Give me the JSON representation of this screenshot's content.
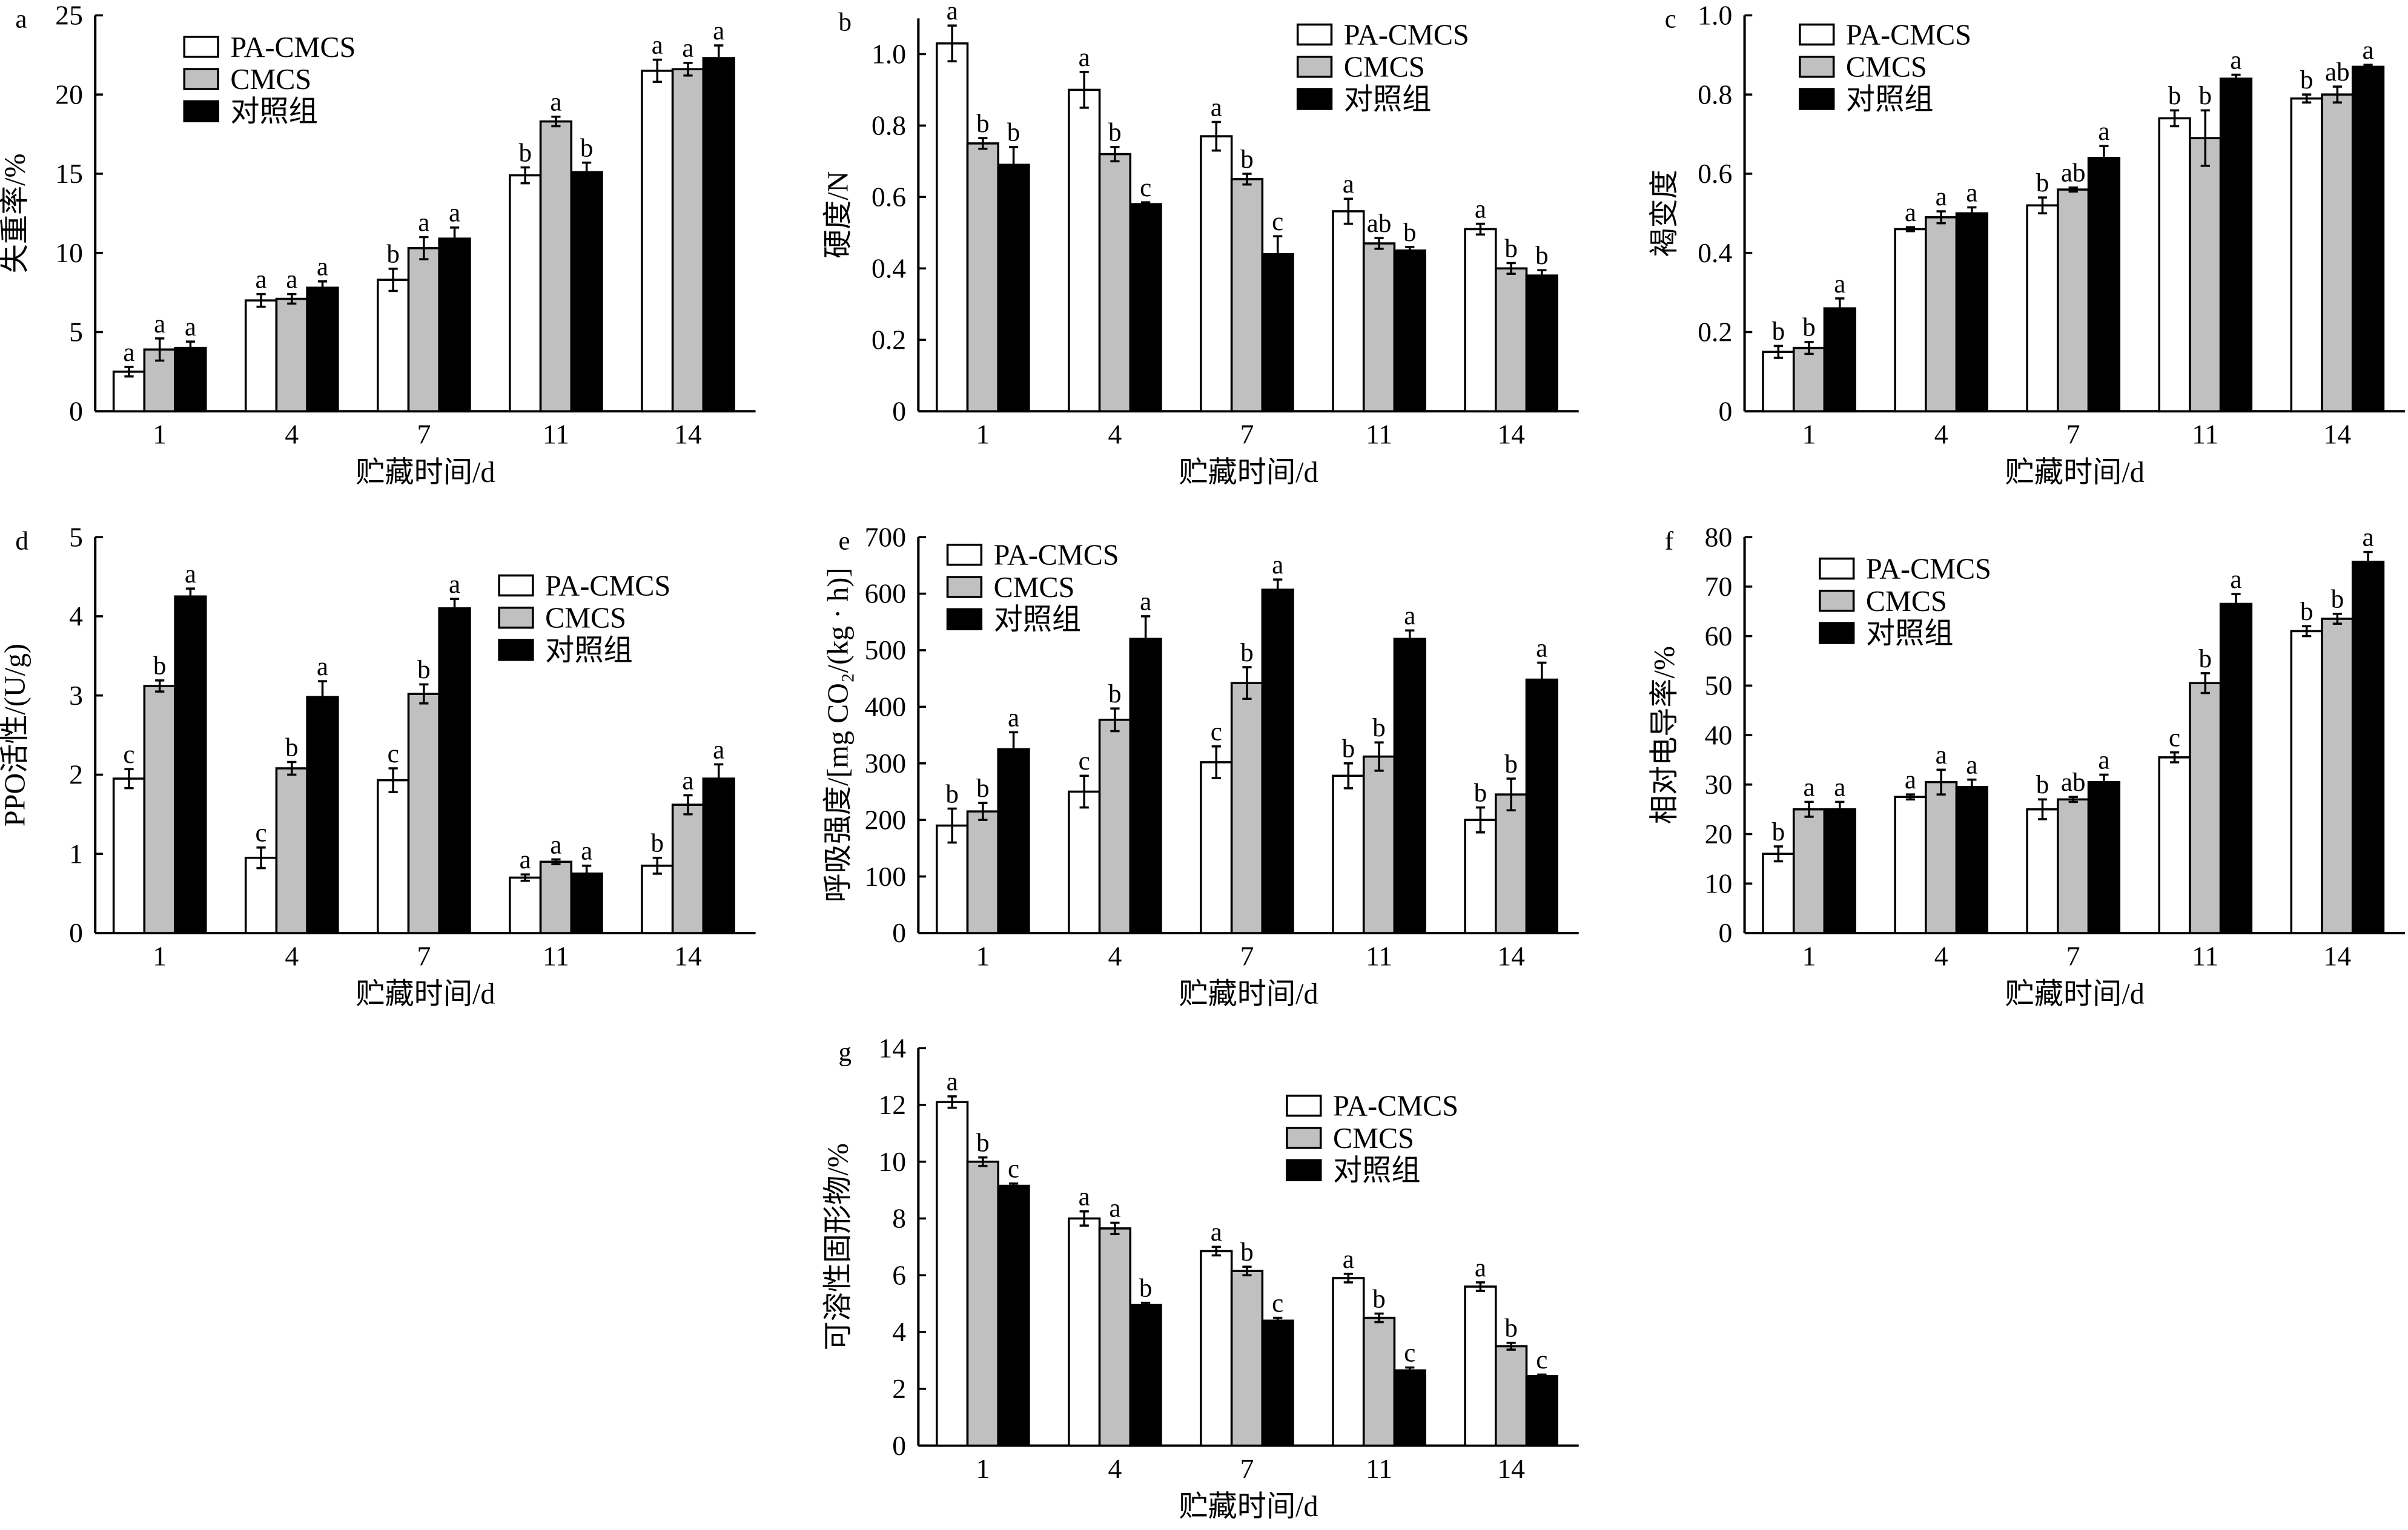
{
  "legend_labels": [
    "PA-CMCS",
    "CMCS",
    "对照组"
  ],
  "colors": {
    "PA-CMCS": "#ffffff",
    "CMCS": "#c0c0c0",
    "对照组": "#000000",
    "outline": "#000000"
  },
  "chart_data": [
    {
      "panel": "a",
      "type": "bar",
      "xlabel": "贮藏时间/d",
      "ylabel": "失重率/%",
      "ylim": [
        0,
        25
      ],
      "ytick_step": 5,
      "yticks": [
        "0",
        "5",
        "10",
        "15",
        "20",
        "25"
      ],
      "legend_position": "top-left",
      "grid": false,
      "categories": [
        "1",
        "4",
        "7",
        "11",
        "14"
      ],
      "series": [
        {
          "name": "PA-CMCS",
          "values": [
            2.5,
            7.0,
            8.3,
            14.9,
            21.5
          ],
          "errors": [
            0.3,
            0.4,
            0.7,
            0.5,
            0.7
          ],
          "letters": [
            "a",
            "a",
            "b",
            "b",
            "a"
          ]
        },
        {
          "name": "CMCS",
          "values": [
            3.9,
            7.1,
            10.3,
            18.3,
            21.6
          ],
          "errors": [
            0.7,
            0.3,
            0.7,
            0.3,
            0.4
          ],
          "letters": [
            "a",
            "a",
            "a",
            "a",
            "a"
          ]
        },
        {
          "name": "对照组",
          "values": [
            4.0,
            7.8,
            10.9,
            15.1,
            22.3
          ],
          "errors": [
            0.4,
            0.4,
            0.7,
            0.6,
            0.8
          ],
          "letters": [
            "a",
            "a",
            "a",
            "b",
            "a"
          ]
        }
      ]
    },
    {
      "panel": "b",
      "type": "bar",
      "xlabel": "贮藏时间/d",
      "ylabel": "硬度/N",
      "ylim": [
        0,
        1.1
      ],
      "ytick_step": 0.2,
      "yticks": [
        "0",
        "0.2",
        "0.4",
        "0.6",
        "0.8",
        "1.0"
      ],
      "legend_position": "top-right",
      "grid": false,
      "categories": [
        "1",
        "4",
        "7",
        "11",
        "14"
      ],
      "series": [
        {
          "name": "PA-CMCS",
          "values": [
            1.03,
            0.9,
            0.77,
            0.56,
            0.51
          ],
          "errors": [
            0.05,
            0.05,
            0.04,
            0.035,
            0.015
          ],
          "letters": [
            "a",
            "a",
            "a",
            "a",
            "a"
          ]
        },
        {
          "name": "CMCS",
          "values": [
            0.75,
            0.72,
            0.65,
            0.47,
            0.4
          ],
          "errors": [
            0.015,
            0.02,
            0.015,
            0.015,
            0.015
          ],
          "letters": [
            "b",
            "b",
            "b",
            "ab",
            "b"
          ]
        },
        {
          "name": "对照组",
          "values": [
            0.69,
            0.58,
            0.44,
            0.45,
            0.38
          ],
          "errors": [
            0.05,
            0.005,
            0.05,
            0.01,
            0.015
          ],
          "letters": [
            "b",
            "c",
            "c",
            "b",
            "b"
          ]
        }
      ]
    },
    {
      "panel": "c",
      "type": "bar",
      "xlabel": "贮藏时间/d",
      "ylabel": "褐变度",
      "ylim": [
        0,
        1.0
      ],
      "ytick_step": 0.2,
      "yticks": [
        "0",
        "0.2",
        "0.4",
        "0.6",
        "0.8",
        "1.0"
      ],
      "legend_position": "top-left",
      "grid": false,
      "categories": [
        "1",
        "4",
        "7",
        "11",
        "14"
      ],
      "series": [
        {
          "name": "PA-CMCS",
          "values": [
            0.15,
            0.46,
            0.52,
            0.74,
            0.79
          ],
          "errors": [
            0.015,
            0.005,
            0.02,
            0.02,
            0.01
          ],
          "letters": [
            "b",
            "a",
            "b",
            "b",
            "b"
          ]
        },
        {
          "name": "CMCS",
          "values": [
            0.16,
            0.49,
            0.56,
            0.69,
            0.8
          ],
          "errors": [
            0.015,
            0.015,
            0.005,
            0.07,
            0.02
          ],
          "letters": [
            "b",
            "a",
            "ab",
            "b",
            "ab"
          ]
        },
        {
          "name": "对照组",
          "values": [
            0.26,
            0.5,
            0.64,
            0.84,
            0.87
          ],
          "errors": [
            0.025,
            0.015,
            0.03,
            0.01,
            0.005
          ],
          "letters": [
            "a",
            "a",
            "a",
            "a",
            "a"
          ]
        }
      ]
    },
    {
      "panel": "d",
      "type": "bar",
      "xlabel": "贮藏时间/d",
      "ylabel": "PPO活性/(U/g)",
      "ylim": [
        0,
        5
      ],
      "ytick_step": 1,
      "yticks": [
        "0",
        "1",
        "2",
        "3",
        "4",
        "5"
      ],
      "legend_position": "top-right",
      "grid": false,
      "categories": [
        "1",
        "4",
        "7",
        "11",
        "14"
      ],
      "series": [
        {
          "name": "PA-CMCS",
          "values": [
            1.95,
            0.95,
            1.93,
            0.7,
            0.85
          ],
          "errors": [
            0.12,
            0.13,
            0.15,
            0.04,
            0.1
          ],
          "letters": [
            "c",
            "c",
            "c",
            "a",
            "b"
          ]
        },
        {
          "name": "CMCS",
          "values": [
            3.12,
            2.08,
            3.02,
            0.9,
            1.62
          ],
          "errors": [
            0.07,
            0.08,
            0.12,
            0.03,
            0.12
          ],
          "letters": [
            "b",
            "b",
            "b",
            "a",
            "a"
          ]
        },
        {
          "name": "对照组",
          "values": [
            4.25,
            2.98,
            4.1,
            0.75,
            1.95
          ],
          "errors": [
            0.1,
            0.2,
            0.12,
            0.1,
            0.18
          ],
          "letters": [
            "a",
            "a",
            "a",
            "a",
            "a"
          ]
        }
      ]
    },
    {
      "panel": "e",
      "type": "bar",
      "xlabel": "贮藏时间/d",
      "ylabel": "呼吸强度/[mg CO₂/(kg · h)]",
      "ylim": [
        0,
        700
      ],
      "ytick_step": 100,
      "yticks": [
        "0",
        "100",
        "200",
        "300",
        "400",
        "500",
        "600",
        "700"
      ],
      "legend_position": "top-left",
      "grid": false,
      "categories": [
        "1",
        "4",
        "7",
        "11",
        "14"
      ],
      "series": [
        {
          "name": "PA-CMCS",
          "values": [
            190,
            250,
            302,
            278,
            200
          ],
          "errors": [
            30,
            28,
            28,
            22,
            22
          ],
          "letters": [
            "b",
            "c",
            "c",
            "b",
            "b"
          ]
        },
        {
          "name": "CMCS",
          "values": [
            215,
            377,
            442,
            312,
            245
          ],
          "errors": [
            15,
            20,
            28,
            25,
            28
          ],
          "letters": [
            "b",
            "b",
            "b",
            "b",
            "b"
          ]
        },
        {
          "name": "对照组",
          "values": [
            325,
            520,
            607,
            520,
            448
          ],
          "errors": [
            30,
            40,
            18,
            15,
            30
          ],
          "letters": [
            "a",
            "a",
            "a",
            "a",
            "a"
          ]
        }
      ]
    },
    {
      "panel": "f",
      "type": "bar",
      "xlabel": "贮藏时间/d",
      "ylabel": "相对电导率/%",
      "ylim": [
        0,
        80
      ],
      "ytick_step": 10,
      "yticks": [
        "0",
        "10",
        "20",
        "30",
        "40",
        "50",
        "60",
        "70",
        "80"
      ],
      "legend_position": "top-left",
      "grid": false,
      "categories": [
        "1",
        "4",
        "7",
        "11",
        "14"
      ],
      "series": [
        {
          "name": "PA-CMCS",
          "values": [
            16,
            27.5,
            25,
            35.5,
            61
          ],
          "errors": [
            1.5,
            0.5,
            2,
            1,
            1
          ],
          "letters": [
            "b",
            "a",
            "b",
            "c",
            "b"
          ]
        },
        {
          "name": "CMCS",
          "values": [
            25,
            30.5,
            27,
            50.5,
            63.5
          ],
          "errors": [
            1.5,
            2.5,
            0.5,
            2,
            1
          ],
          "letters": [
            "a",
            "a",
            "ab",
            "b",
            "b"
          ]
        },
        {
          "name": "对照组",
          "values": [
            25,
            29.5,
            30.5,
            66.5,
            75
          ],
          "errors": [
            1.5,
            1.5,
            1.5,
            2,
            2
          ],
          "letters": [
            "a",
            "a",
            "a",
            "a",
            "a"
          ]
        }
      ]
    },
    {
      "panel": "g",
      "type": "bar",
      "xlabel": "贮藏时间/d",
      "ylabel": "可溶性固形物/%",
      "ylim": [
        0,
        14
      ],
      "ytick_step": 2,
      "yticks": [
        "0",
        "2",
        "4",
        "6",
        "8",
        "10",
        "12",
        "14"
      ],
      "legend_position": "top-right",
      "grid": false,
      "categories": [
        "1",
        "4",
        "7",
        "11",
        "14"
      ],
      "series": [
        {
          "name": "PA-CMCS",
          "values": [
            12.1,
            8.0,
            6.85,
            5.9,
            5.6
          ],
          "errors": [
            0.2,
            0.25,
            0.15,
            0.15,
            0.15
          ],
          "letters": [
            "a",
            "a",
            "a",
            "a",
            "a"
          ]
        },
        {
          "name": "CMCS",
          "values": [
            10.0,
            7.65,
            6.15,
            4.5,
            3.5
          ],
          "errors": [
            0.15,
            0.2,
            0.15,
            0.15,
            0.12
          ],
          "letters": [
            "b",
            "a",
            "b",
            "b",
            "b"
          ]
        },
        {
          "name": "对照组",
          "values": [
            9.15,
            4.95,
            4.4,
            2.65,
            2.45
          ],
          "errors": [
            0.08,
            0.08,
            0.1,
            0.1,
            0.05
          ],
          "letters": [
            "c",
            "b",
            "c",
            "c",
            "c"
          ]
        }
      ]
    }
  ]
}
